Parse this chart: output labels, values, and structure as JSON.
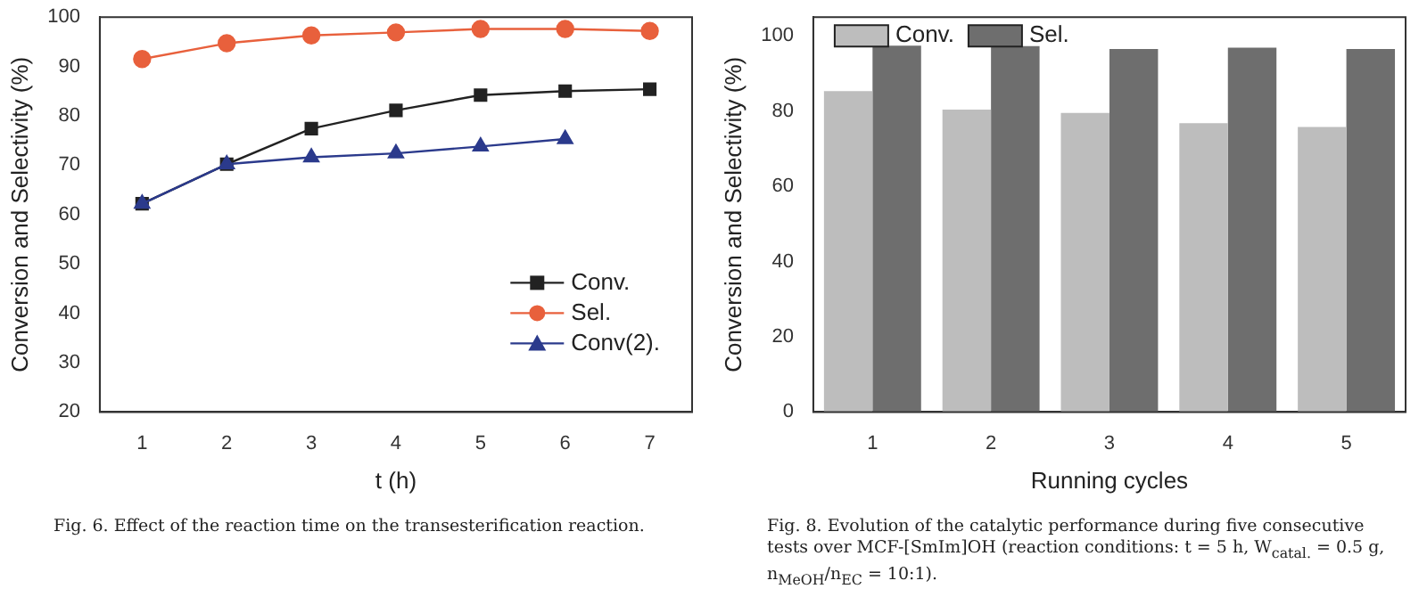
{
  "chart_data": [
    {
      "type": "line",
      "xlabel": "t (h)",
      "ylabel": "Conversion and Selectivity (%)",
      "annotations": [
        "Fig. 6. Effect of the reaction time on the transesterification reaction."
      ],
      "xlim": [
        0.5,
        7.5
      ],
      "xticks": [
        1,
        2,
        3,
        4,
        5,
        6,
        7
      ],
      "ylim": [
        20,
        100
      ],
      "yticks": [
        20,
        30,
        40,
        50,
        60,
        70,
        80,
        90,
        100
      ],
      "grid": false,
      "legend": "bottom right",
      "x": [
        1,
        2,
        3,
        4,
        5,
        6,
        7
      ],
      "series": [
        {
          "name": "Conv.",
          "color": "#222222",
          "marker": "square",
          "values": [
            62.2,
            70.2,
            77.4,
            81.1,
            84.2,
            85.0,
            85.4
          ]
        },
        {
          "name": "Sel.",
          "color": "#e8603c",
          "marker": "circle",
          "values": [
            91.5,
            94.7,
            96.3,
            96.9,
            97.6,
            97.6,
            97.2
          ]
        },
        {
          "name": "Conv(2).",
          "color": "#2b3a8c",
          "marker": "triangle",
          "values": [
            62.2,
            70.2,
            71.6,
            72.4,
            73.8,
            75.3,
            null
          ]
        }
      ]
    },
    {
      "type": "bar",
      "xlabel": "Running cycles",
      "ylabel": "Conversion and Selectivity (%)",
      "annotations": [
        "Fig. 8. Evolution of the catalytic performance during five consecutive tests over MCF-[SmIm]OH (reaction conditions: t = 5 h, W$_{catal.}$ = 0.5 g, n$_{MeOH}$/n$_{EC}$ = 10:1)."
      ],
      "categories": [
        "1",
        "2",
        "3",
        "4",
        "5"
      ],
      "ylim": [
        0,
        105
      ],
      "yticks": [
        0,
        20,
        40,
        60,
        80,
        100
      ],
      "grid": false,
      "legend": "top left",
      "series": [
        {
          "name": "Conv.",
          "color": "#bdbdbd",
          "values": [
            85.3,
            80.4,
            79.5,
            76.8,
            75.8
          ]
        },
        {
          "name": "Sel.",
          "color": "#6e6e6e",
          "values": [
            97.4,
            97.3,
            96.5,
            96.9,
            96.5
          ]
        }
      ]
    }
  ]
}
